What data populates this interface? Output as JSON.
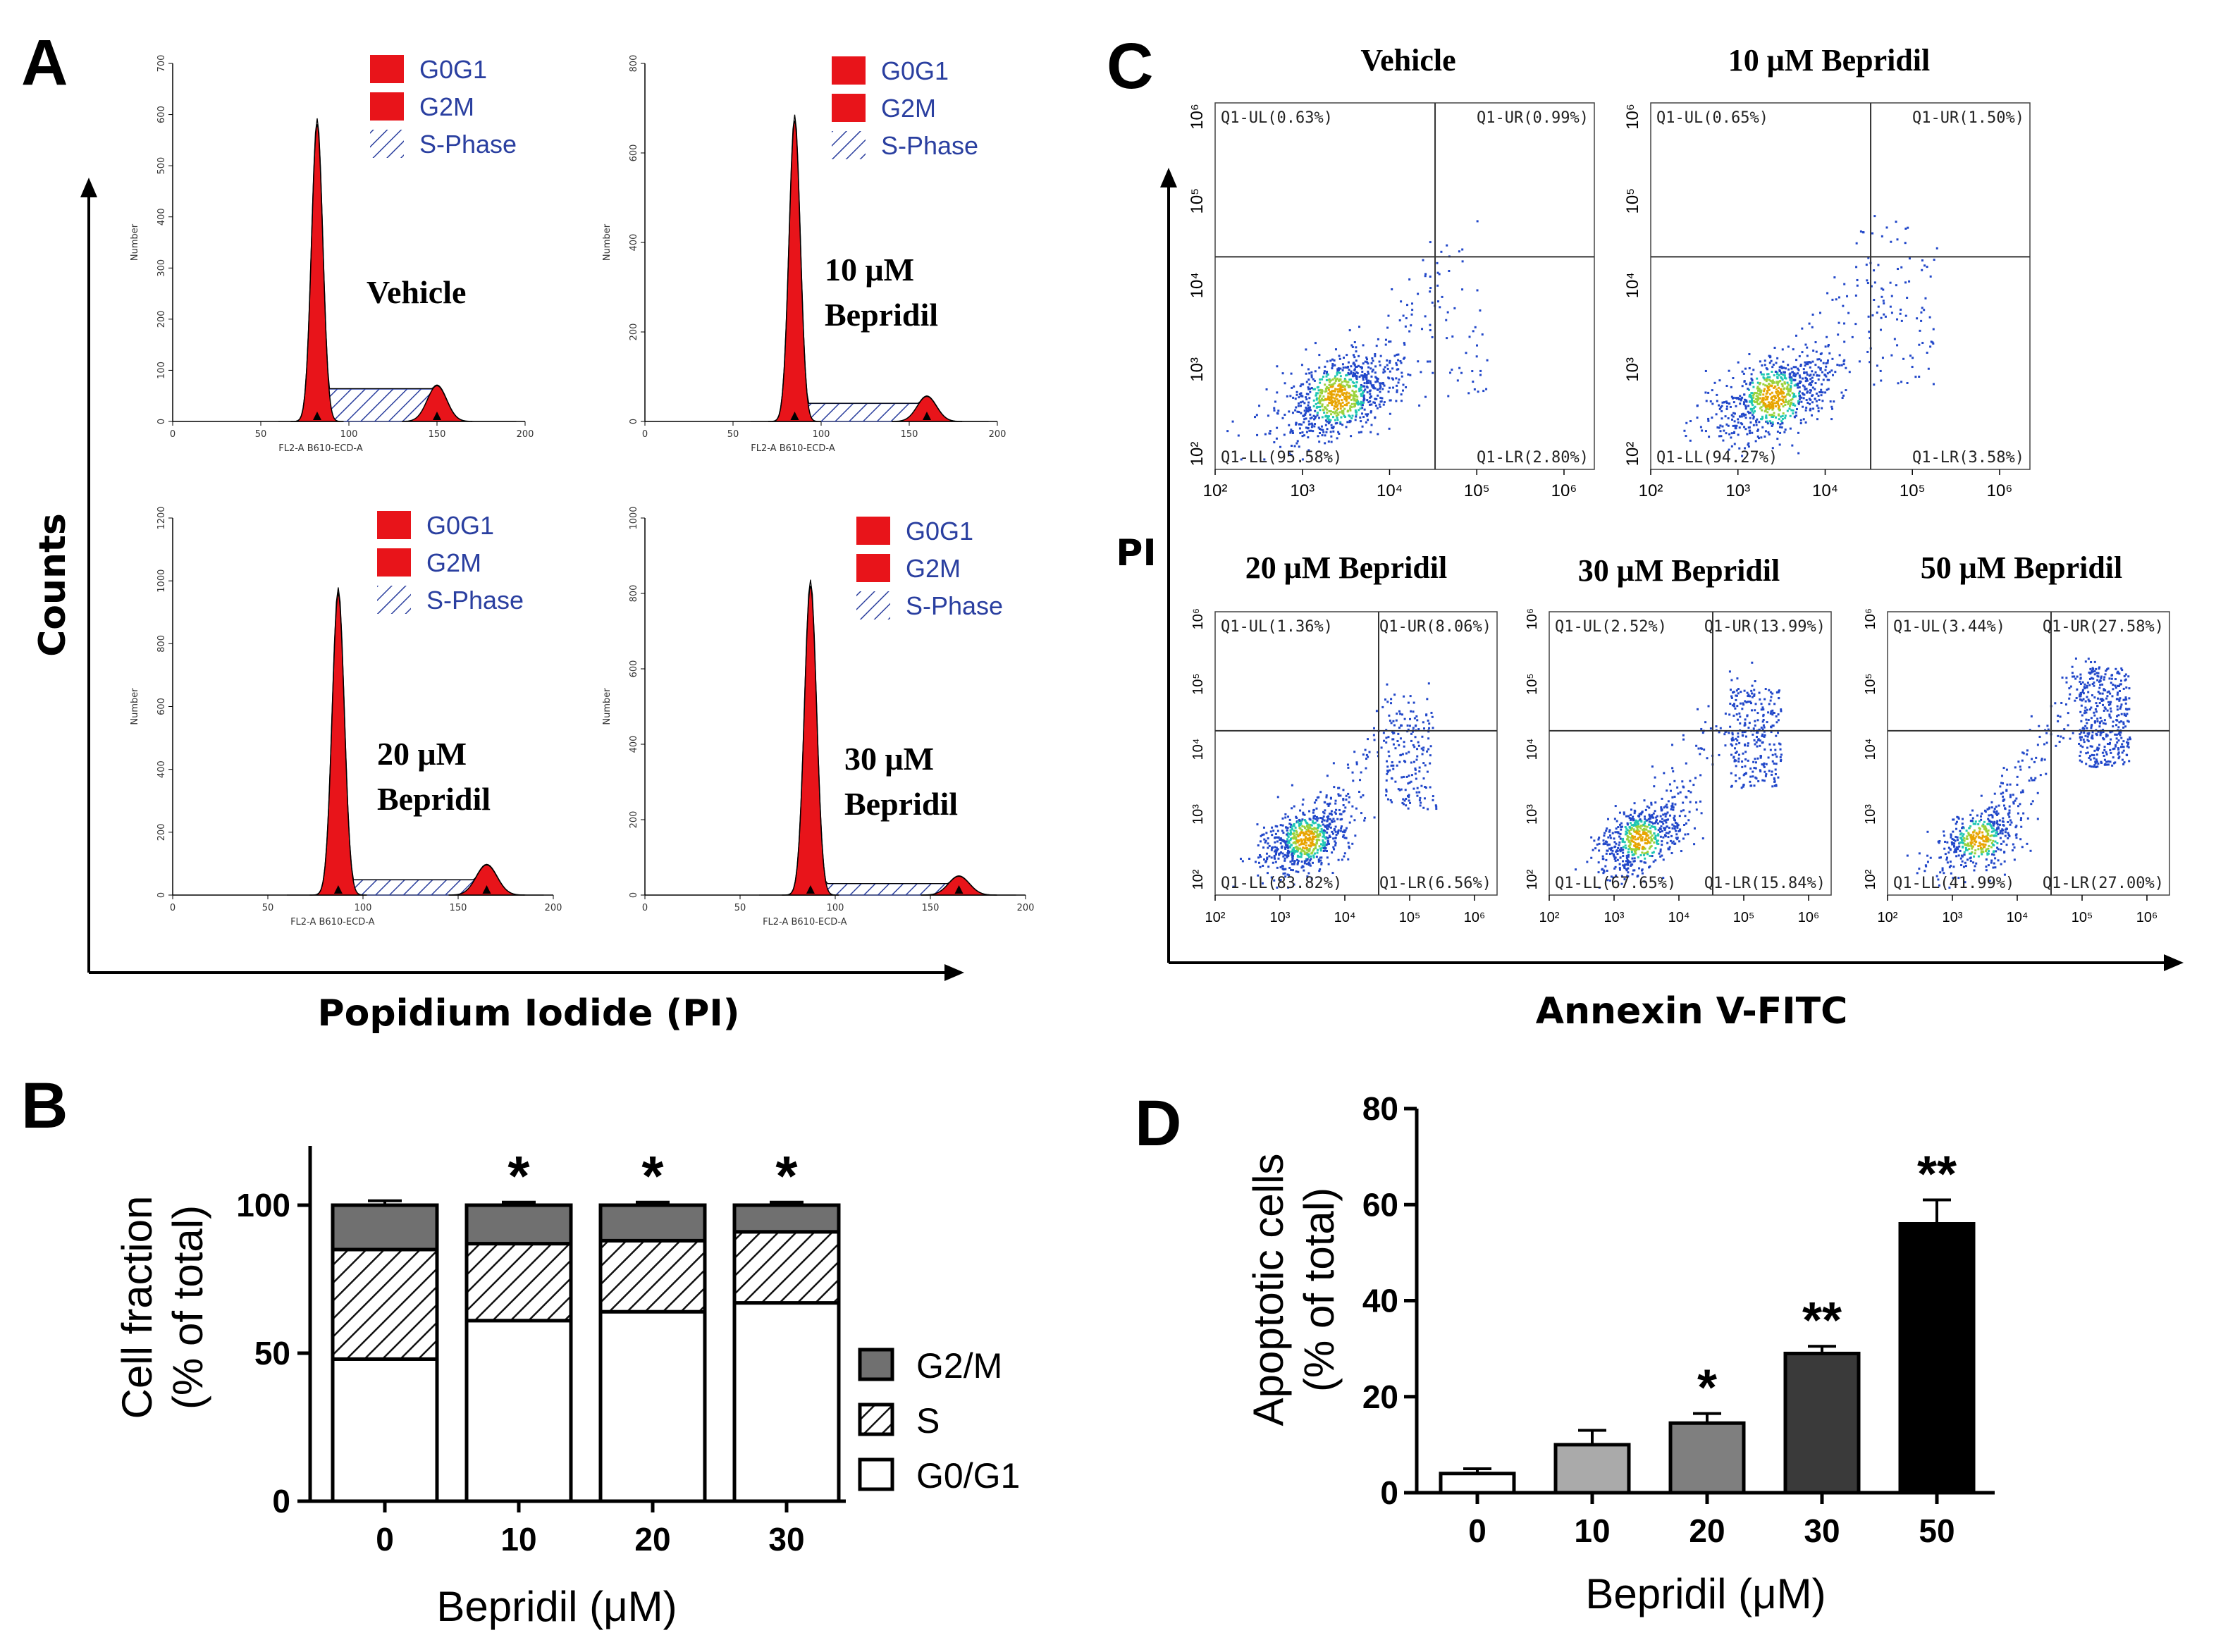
{
  "colors": {
    "red": "#e8141a",
    "g2m": "#707070",
    "bar_d": [
      "#ffffff",
      "#aaaaaa",
      "#7f7f7f",
      "#3a3a3a",
      "#000000"
    ],
    "hatch": "#2b3f9e",
    "dot_blue": "#2147c9"
  },
  "panel_a": {
    "letter": "A",
    "y_axis_label": "Counts",
    "x_axis_label": "Popidium Iodide (PI)",
    "legend": [
      "G0G1",
      "G2M",
      "S-Phase"
    ],
    "hist_axis_title_y": "Number",
    "hist_axis_title_x": "FL2-A B610-ECD-A",
    "histograms": [
      {
        "label": [
          "Vehicle"
        ],
        "y_ticks": [
          "0",
          "100",
          "200",
          "300",
          "400",
          "500",
          "600",
          "700"
        ],
        "x_ticks": [
          "0",
          "50",
          "100",
          "150",
          "200"
        ],
        "g1_mean": 82,
        "g1_height": 0.83,
        "g2_mean": 150,
        "g2_height": 0.1,
        "s_level": 0.09
      },
      {
        "label": [
          "10 μM",
          "Bepridil"
        ],
        "y_ticks": [
          "0",
          "200",
          "400",
          "600",
          "800"
        ],
        "x_ticks": [
          "0",
          "50",
          "100",
          "150",
          "200"
        ],
        "g1_mean": 85,
        "g1_height": 0.84,
        "g2_mean": 160,
        "g2_height": 0.07,
        "s_level": 0.05
      },
      {
        "label": [
          "20 μM",
          "Bepridil"
        ],
        "y_ticks": [
          "0",
          "200",
          "400",
          "600",
          "800",
          "1000",
          "1200"
        ],
        "x_ticks": [
          "0",
          "50",
          "100",
          "150",
          "200"
        ],
        "g1_mean": 87,
        "g1_height": 0.8,
        "g2_mean": 165,
        "g2_height": 0.08,
        "s_level": 0.04
      },
      {
        "label": [
          "30 μM",
          "Bepridil"
        ],
        "y_ticks": [
          "0",
          "200",
          "400",
          "600",
          "800",
          "1000"
        ],
        "x_ticks": [
          "0",
          "50",
          "100",
          "150",
          "200"
        ],
        "g1_mean": 87,
        "g1_height": 0.82,
        "g2_mean": 165,
        "g2_height": 0.05,
        "s_level": 0.03
      }
    ]
  },
  "panel_c": {
    "letter": "C",
    "y_axis_label": "PI",
    "x_axis_label": "Annexin V-FITC",
    "tick_labels": [
      "10²",
      "10³",
      "10⁴",
      "10⁵",
      "10⁶"
    ],
    "plots": [
      {
        "title": "Vehicle",
        "ul": "Q1-UL(0.63%)",
        "ur": "Q1-UR(0.99%)",
        "ll": "Q1-LL(95.58%)",
        "lr": "Q1-LR(2.80%)",
        "spread": 0.0
      },
      {
        "title": "10 μM Bepridil",
        "ul": "Q1-UL(0.65%)",
        "ur": "Q1-UR(1.50%)",
        "ll": "Q1-LL(94.27%)",
        "lr": "Q1-LR(3.58%)",
        "spread": 0.1
      },
      {
        "title": "20 μM Bepridil",
        "ul": "Q1-UL(1.36%)",
        "ur": "Q1-UR(8.06%)",
        "ll": "Q1-LL(83.82%)",
        "lr": "Q1-LR(6.56%)",
        "spread": 0.35
      },
      {
        "title": "30 μM Bepridil",
        "ul": "Q1-UL(2.52%)",
        "ur": "Q1-UR(13.99%)",
        "ll": "Q1-LL(67.65%)",
        "lr": "Q1-LR(15.84%)",
        "spread": 0.6
      },
      {
        "title": "50 μM Bepridil",
        "ul": "Q1-UL(3.44%)",
        "ur": "Q1-UR(27.58%)",
        "ll": "Q1-LL(41.99%)",
        "lr": "Q1-LR(27.00%)",
        "spread": 0.85
      }
    ]
  },
  "chart_data": [
    {
      "panel": "B",
      "type": "bar",
      "stacked": true,
      "categories": [
        "0",
        "10",
        "20",
        "30"
      ],
      "series": [
        {
          "name": "G0/G1",
          "values": [
            48,
            61,
            64,
            67
          ],
          "errors": [
            2,
            1.5,
            2,
            1.5
          ]
        },
        {
          "name": "S",
          "values": [
            37,
            26,
            24,
            24
          ],
          "errors": [
            2,
            1.5,
            2,
            1.5
          ]
        },
        {
          "name": "G2/M",
          "values": [
            15,
            13,
            12,
            9
          ],
          "errors": [
            1.5,
            1,
            1,
            1
          ]
        }
      ],
      "significance": [
        "",
        "*",
        "*",
        "*"
      ],
      "xlabel": "Bepridil (μM)",
      "ylabel": [
        "Cell fraction",
        "(% of total)"
      ],
      "ylim": [
        0,
        120
      ],
      "y_ticks": [
        0,
        50,
        100
      ],
      "legend_order": [
        "G2/M",
        "S",
        "G0/G1"
      ],
      "legend_position": "right"
    },
    {
      "panel": "D",
      "type": "bar",
      "categories": [
        "0",
        "10",
        "20",
        "30",
        "50"
      ],
      "values": [
        4,
        10,
        14.5,
        29,
        56
      ],
      "errors": [
        1,
        3,
        2,
        1.5,
        5
      ],
      "significance": [
        "",
        "",
        "*",
        "**",
        "**"
      ],
      "xlabel": "Bepridil (μM)",
      "ylabel": [
        "Apoptotic cells",
        "(% of total)"
      ],
      "ylim": [
        0,
        80
      ],
      "y_ticks": [
        0,
        20,
        40,
        60,
        80
      ]
    }
  ],
  "panel_b_letter": "B",
  "panel_d_letter": "D"
}
